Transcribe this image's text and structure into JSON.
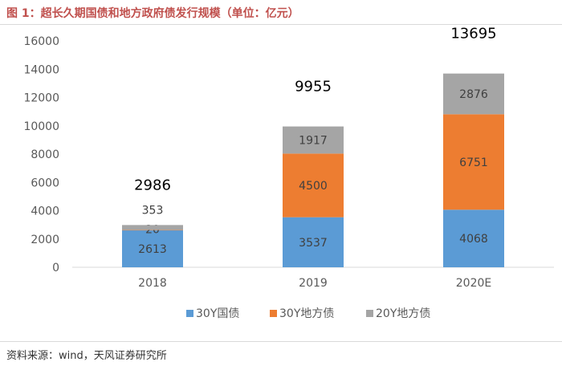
{
  "title": "图 1：超长久期国债和地方政府债发行规模（单位：亿元）",
  "source": "资料来源：wind，天风证券研究所",
  "chart_data": {
    "type": "bar",
    "stacked": true,
    "categories": [
      "2018",
      "2019",
      "2020E"
    ],
    "series": [
      {
        "name": "30Y国债",
        "values": [
          2613,
          3537,
          4068
        ],
        "color": "#5b9bd5"
      },
      {
        "name": "30Y地方债",
        "values": [
          20,
          4500,
          6751
        ],
        "color": "#ed7d31"
      },
      {
        "name": "20Y地方债",
        "values": [
          353,
          1917,
          2876
        ],
        "color": "#a5a5a5"
      }
    ],
    "totals": [
      2986,
      9955,
      13695
    ],
    "ylim": [
      0,
      16000
    ],
    "yticks": [
      0,
      2000,
      4000,
      6000,
      8000,
      10000,
      12000,
      14000,
      16000
    ],
    "legend": "bottom",
    "grid": false
  }
}
